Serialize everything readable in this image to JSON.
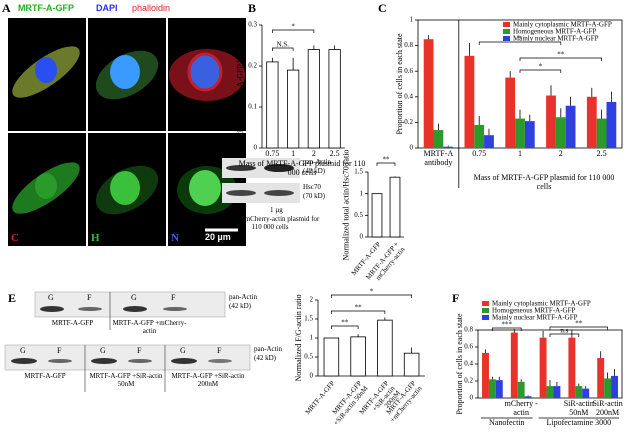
{
  "panel_a": {
    "label": "A",
    "channels": [
      "MRTF-A-GFP",
      "DAPI",
      "phalloidin"
    ],
    "states": [
      "C",
      "H",
      "N"
    ],
    "scale_bar": "20 µm"
  },
  "blot_d": {
    "label": "D",
    "bands": [
      "pan-Actin",
      "(42 kD)",
      "Hsc70",
      "(70 kD)"
    ],
    "lanes": [
      "0 µg",
      "1 µg"
    ],
    "caption": "Mass of mCherry-actin plasmid for 110 000 cells"
  },
  "blot_e": {
    "label": "E",
    "top": {
      "lanes": [
        "G",
        "F",
        "G",
        "F"
      ],
      "groups": [
        "MRTF-A-GFP",
        "MRTF-A-GFP +mCherry-actin"
      ],
      "bands": [
        "pan-Actin",
        "(42 kD)"
      ]
    },
    "bottom": {
      "lanes": [
        "G",
        "F",
        "G",
        "F",
        "G",
        "F"
      ],
      "groups": [
        "MRTF-A-GFP",
        "MRTF-A-GFP +SiR-actin 50nM",
        "MRTF-A-GFP +SiR-actin 200nM"
      ],
      "bands": [
        "pan-Actin",
        "(42 kD)"
      ]
    }
  },
  "chart_data": [
    {
      "type": "bar",
      "panel": "B",
      "ylabel": "Proportion of MRTF-A-GFP in the nucleus",
      "xlabel": "Mass of MRTF-A-GFP plasmid for 110 000 cells",
      "categories": [
        "0.75",
        "1",
        "2",
        "2.5"
      ],
      "values": [
        0.21,
        0.19,
        0.24,
        0.24
      ],
      "errors": [
        0.01,
        0.03,
        0.01,
        0.01
      ],
      "color": "#ffffff",
      "ylim": [
        0,
        0.3
      ],
      "yticks": [
        0,
        0.1,
        0.2,
        0.3
      ],
      "annotations": [
        "N.S.",
        "*"
      ]
    },
    {
      "type": "bar",
      "panel": "C",
      "ylabel": "Proportion of cells in each state",
      "xlabel": "Mass of MRTF-A-GFP plasmid for 110 000 cells",
      "categories": [
        "MRTF-A antibody",
        "0.75",
        "1",
        "2",
        "2.5"
      ],
      "series": [
        {
          "name": "Mainly cytoplasmic MRTF-A-GFP",
          "color": "#e8322a",
          "values": [
            0.85,
            0.72,
            0.55,
            0.41,
            0.4
          ],
          "errors": [
            0.03,
            0.1,
            0.05,
            0.08,
            0.07
          ]
        },
        {
          "name": "Homogeneous MRTF-A-GFP",
          "color": "#2a9a2a",
          "values": [
            0.14,
            0.18,
            0.23,
            0.24,
            0.23
          ],
          "errors": [
            0.05,
            0.07,
            0.07,
            0.07,
            0.07
          ]
        },
        {
          "name": "Mainly nuclear MRTF-A-GFP",
          "color": "#2f3fe0",
          "values": [
            0.01,
            0.1,
            0.21,
            0.33,
            0.36
          ],
          "errors": [
            0.01,
            0.05,
            0.05,
            0.07,
            0.08
          ]
        }
      ],
      "ylim": [
        0,
        1
      ],
      "yticks": [
        0,
        0.2,
        0.4,
        0.6,
        0.8,
        1
      ],
      "annotations": [
        "*",
        "**",
        "*"
      ]
    },
    {
      "type": "bar",
      "ylabel": "Normalized total actin/Hsc70 ratio",
      "categories": [
        "MRTF-A-GFP",
        "MRTF-A-GFP + mCherry-actin"
      ],
      "values": [
        1,
        1.38
      ],
      "errors": [
        0,
        0.02
      ],
      "color": "#ffffff",
      "ylim": [
        0,
        1.5
      ],
      "yticks": [
        0,
        0.5,
        1,
        1.5
      ],
      "annotations": [
        "**"
      ]
    },
    {
      "type": "bar",
      "ylabel": "Normalized F/G-actin ratio",
      "categories": [
        "MRTF-A-GFP",
        "MRTF-A-GFP +SiR-actin 50nM",
        "MRTF-A-GFP +SiR-actin 200nM",
        "MRTF-A-GFP +mCherry-actin"
      ],
      "values": [
        1,
        1.03,
        1.47,
        0.6
      ],
      "errors": [
        0,
        0.07,
        0.07,
        0.15
      ],
      "color": "#ffffff",
      "ylim": [
        0,
        2
      ],
      "yticks": [
        0,
        0.5,
        1,
        1.5,
        2
      ],
      "annotations": [
        "**",
        "**",
        "*"
      ]
    },
    {
      "type": "bar",
      "panel": "F",
      "ylabel": "Proportion of cells in each state",
      "categories": [
        null,
        "mCherry -actin",
        null,
        "SiR-actin 50nM",
        "SiR-actin 200nM"
      ],
      "groups": [
        "Nanofectin",
        "Lipofectamine 3000"
      ],
      "series": [
        {
          "name": "Mainly cytoplasmic MRTF-A-GFP",
          "color": "#e8322a",
          "values": [
            0.53,
            0.77,
            0.71,
            0.71,
            0.47
          ],
          "errors": [
            0.04,
            0.04,
            0.08,
            0.09,
            0.08
          ]
        },
        {
          "name": "Homogeneous MRTF-A-GFP",
          "color": "#2a9a2a",
          "values": [
            0.22,
            0.19,
            0.14,
            0.14,
            0.23
          ],
          "errors": [
            0.03,
            0.03,
            0.07,
            0.03,
            0.07
          ]
        },
        {
          "name": "Mainly nuclear MRTF-A-GFP",
          "color": "#2f3fe0",
          "values": [
            0.21,
            0.02,
            0.14,
            0.11,
            0.26
          ],
          "errors": [
            0.04,
            0.01,
            0.05,
            0.03,
            0.08
          ]
        }
      ],
      "ylim": [
        0,
        0.8
      ],
      "yticks": [
        0,
        0.2,
        0.4,
        0.6,
        0.8
      ],
      "annotations": [
        "***",
        "n.s",
        "**"
      ]
    }
  ]
}
